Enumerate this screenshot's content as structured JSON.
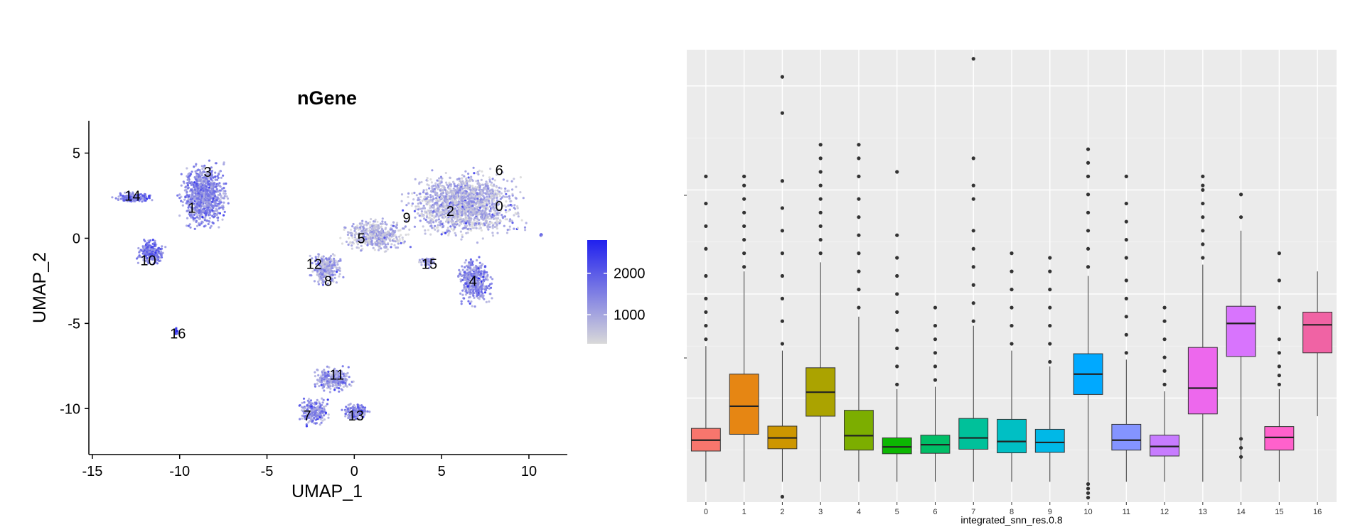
{
  "chart_data": [
    {
      "type": "scatter",
      "title": "nGene",
      "xlabel": "UMAP_1",
      "ylabel": "UMAP_2",
      "xlim": [
        -15.2,
        12.2
      ],
      "ylim": [
        -12.7,
        6.9
      ],
      "x_ticks": [
        -15,
        -10,
        -5,
        0,
        5,
        10
      ],
      "y_ticks": [
        5,
        0,
        -5,
        -10
      ],
      "color_scale": {
        "low_color": "#d9d9d9",
        "high_color": "#2020ee",
        "range": [
          300,
          2800
        ],
        "ticks": [
          1000,
          2000
        ]
      },
      "grid": false,
      "legend_position": "right",
      "clusters": [
        {
          "label": "0",
          "x": 8.3,
          "y": 1.9
        },
        {
          "label": "1",
          "x": -9.3,
          "y": 1.8
        },
        {
          "label": "2",
          "x": 5.5,
          "y": 1.6
        },
        {
          "label": "3",
          "x": -8.4,
          "y": 3.9
        },
        {
          "label": "4",
          "x": 6.8,
          "y": -2.5
        },
        {
          "label": "5",
          "x": 0.4,
          "y": 0.0
        },
        {
          "label": "6",
          "x": 8.3,
          "y": 4.0
        },
        {
          "label": "7",
          "x": -2.7,
          "y": -10.4
        },
        {
          "label": "8",
          "x": -1.5,
          "y": -2.5
        },
        {
          "label": "9",
          "x": 3.0,
          "y": 1.2
        },
        {
          "label": "10",
          "x": -11.8,
          "y": -1.3
        },
        {
          "label": "11",
          "x": -1.0,
          "y": -8.0
        },
        {
          "label": "12",
          "x": -2.3,
          "y": -1.5
        },
        {
          "label": "13",
          "x": 0.1,
          "y": -10.4
        },
        {
          "label": "14",
          "x": -12.7,
          "y": 2.5
        },
        {
          "label": "15",
          "x": 4.3,
          "y": -1.5
        },
        {
          "label": "16",
          "x": -10.1,
          "y": -5.6
        }
      ]
    },
    {
      "type": "box",
      "xlabel": "integrated_snn_res.0.8",
      "ylabel": "",
      "ylim": [
        0,
        1
      ],
      "categories": [
        "0",
        "1",
        "2",
        "3",
        "4",
        "5",
        "6",
        "7",
        "8",
        "9",
        "10",
        "11",
        "12",
        "13",
        "14",
        "15",
        "16"
      ],
      "grid": true,
      "legend_position": "none",
      "boxes": [
        {
          "category": "0",
          "color": "#F8766D",
          "whisker_low": 0.045,
          "q1": 0.113,
          "median": 0.137,
          "q3": 0.163,
          "whisker_high": 0.345,
          "outliers_high": [
            0.36,
            0.39,
            0.42,
            0.45,
            0.5,
            0.56,
            0.61,
            0.66,
            0.72
          ]
        },
        {
          "category": "1",
          "color": "#E68613",
          "whisker_low": 0.045,
          "q1": 0.15,
          "median": 0.212,
          "q3": 0.283,
          "whisker_high": 0.51,
          "outliers_high": [
            0.52,
            0.55,
            0.58,
            0.61,
            0.64,
            0.67,
            0.7,
            0.72
          ]
        },
        {
          "category": "2",
          "color": "#CD9600",
          "whisker_low": 0.045,
          "q1": 0.118,
          "median": 0.142,
          "q3": 0.168,
          "whisker_high": 0.335,
          "outliers_low": [
            0.012
          ],
          "outliers_high": [
            0.35,
            0.4,
            0.45,
            0.5,
            0.55,
            0.6,
            0.65,
            0.71,
            0.86,
            0.94
          ]
        },
        {
          "category": "3",
          "color": "#ABA300",
          "whisker_low": 0.045,
          "q1": 0.19,
          "median": 0.243,
          "q3": 0.297,
          "whisker_high": 0.53,
          "outliers_high": [
            0.55,
            0.58,
            0.61,
            0.64,
            0.67,
            0.7,
            0.73,
            0.76,
            0.79
          ]
        },
        {
          "category": "4",
          "color": "#7CAE00",
          "whisker_low": 0.045,
          "q1": 0.115,
          "median": 0.147,
          "q3": 0.203,
          "whisker_high": 0.41,
          "outliers_high": [
            0.43,
            0.47,
            0.51,
            0.55,
            0.59,
            0.63,
            0.67,
            0.72,
            0.76,
            0.79
          ]
        },
        {
          "category": "5",
          "color": "#0CB702",
          "whisker_low": 0.045,
          "q1": 0.107,
          "median": 0.122,
          "q3": 0.142,
          "whisker_high": 0.25,
          "outliers_high": [
            0.26,
            0.3,
            0.34,
            0.38,
            0.42,
            0.46,
            0.5,
            0.54,
            0.59,
            0.73
          ]
        },
        {
          "category": "6",
          "color": "#00BE67",
          "whisker_low": 0.045,
          "q1": 0.108,
          "median": 0.127,
          "q3": 0.148,
          "whisker_high": 0.255,
          "outliers_high": [
            0.27,
            0.3,
            0.33,
            0.36,
            0.39,
            0.43
          ]
        },
        {
          "category": "7",
          "color": "#00C19A",
          "whisker_low": 0.045,
          "q1": 0.117,
          "median": 0.142,
          "q3": 0.185,
          "whisker_high": 0.39,
          "outliers_high": [
            0.4,
            0.44,
            0.48,
            0.52,
            0.56,
            0.6,
            0.67,
            0.7,
            0.76,
            0.98
          ]
        },
        {
          "category": "8",
          "color": "#00BFC4",
          "whisker_low": 0.045,
          "q1": 0.109,
          "median": 0.134,
          "q3": 0.183,
          "whisker_high": 0.335,
          "outliers_high": [
            0.35,
            0.39,
            0.43,
            0.47,
            0.51,
            0.55
          ]
        },
        {
          "category": "9",
          "color": "#00B8E7",
          "whisker_low": 0.045,
          "q1": 0.11,
          "median": 0.132,
          "q3": 0.161,
          "whisker_high": 0.3,
          "outliers_high": [
            0.31,
            0.35,
            0.39,
            0.43,
            0.47,
            0.51,
            0.54
          ]
        },
        {
          "category": "10",
          "color": "#00A9FF",
          "whisker_low": 0.045,
          "q1": 0.238,
          "median": 0.283,
          "q3": 0.328,
          "whisker_high": 0.5,
          "outliers_low": [
            0.01,
            0.02,
            0.03,
            0.04
          ],
          "outliers_high": [
            0.52,
            0.56,
            0.6,
            0.64,
            0.68,
            0.72,
            0.75,
            0.78
          ]
        },
        {
          "category": "11",
          "color": "#8494FF",
          "whisker_low": 0.045,
          "q1": 0.115,
          "median": 0.137,
          "q3": 0.172,
          "whisker_high": 0.315,
          "outliers_high": [
            0.33,
            0.37,
            0.41,
            0.45,
            0.49,
            0.54,
            0.58,
            0.62,
            0.66,
            0.72
          ]
        },
        {
          "category": "12",
          "color": "#C77CFF",
          "whisker_low": 0.045,
          "q1": 0.102,
          "median": 0.123,
          "q3": 0.148,
          "whisker_high": 0.245,
          "outliers_high": [
            0.26,
            0.29,
            0.32,
            0.36,
            0.4,
            0.43
          ]
        },
        {
          "category": "13",
          "color": "#ED68ED",
          "whisker_low": 0.045,
          "q1": 0.195,
          "median": 0.252,
          "q3": 0.342,
          "whisker_high": 0.525,
          "outliers_high": [
            0.54,
            0.57,
            0.6,
            0.63,
            0.66,
            0.69,
            0.7,
            0.72
          ]
        },
        {
          "category": "14",
          "color": "#D874FD",
          "whisker_low": 0.045,
          "q1": 0.322,
          "median": 0.395,
          "q3": 0.433,
          "whisker_high": 0.6,
          "outliers_low": [
            0.1,
            0.12,
            0.14
          ],
          "outliers_high": [
            0.63,
            0.68
          ]
        },
        {
          "category": "15",
          "color": "#FF61CC",
          "whisker_low": 0.045,
          "q1": 0.115,
          "median": 0.143,
          "q3": 0.167,
          "whisker_high": 0.25,
          "outliers_high": [
            0.26,
            0.28,
            0.3,
            0.33,
            0.36,
            0.43,
            0.49,
            0.55
          ]
        },
        {
          "category": "16",
          "color": "#F063A4",
          "whisker_low": 0.19,
          "q1": 0.33,
          "median": 0.392,
          "q3": 0.42,
          "whisker_high": 0.51
        }
      ]
    }
  ]
}
